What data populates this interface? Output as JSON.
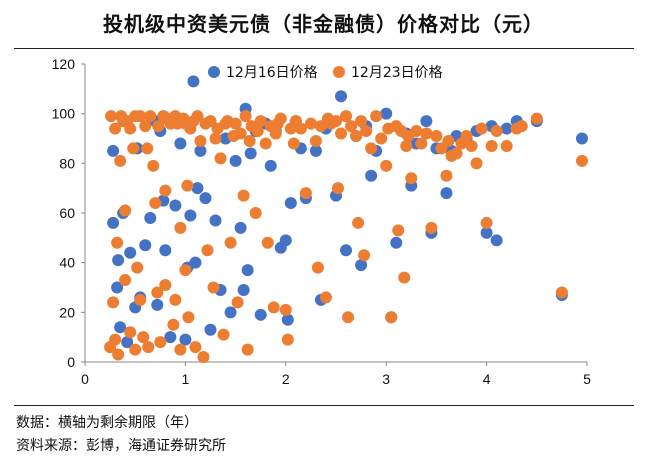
{
  "title": "投机级中资美元债（非金融债）价格对比（元）",
  "notes": {
    "data_note": "数据：横轴为剩余期限（年）",
    "source": "资料来源：彭博，海通证券研究所"
  },
  "colors": {
    "series1": "#4472c4",
    "series2": "#ed7d31",
    "axis": "#888888",
    "text": "#111111"
  },
  "chart_data": {
    "type": "scatter",
    "title": "",
    "xlabel": "",
    "ylabel": "",
    "xlim": [
      0,
      5
    ],
    "ylim": [
      0,
      120
    ],
    "xticks": [
      0,
      1,
      2,
      3,
      4,
      5
    ],
    "yticks": [
      0,
      20,
      40,
      60,
      80,
      100,
      120
    ],
    "grid": false,
    "legend_position": "top-right",
    "series": [
      {
        "name": "12月16日价格",
        "points": [
          [
            0.28,
            85
          ],
          [
            0.28,
            56
          ],
          [
            0.32,
            30
          ],
          [
            0.33,
            41
          ],
          [
            0.35,
            14
          ],
          [
            0.38,
            60
          ],
          [
            0.42,
            8
          ],
          [
            0.45,
            44
          ],
          [
            0.5,
            22
          ],
          [
            0.52,
            86
          ],
          [
            0.55,
            26
          ],
          [
            0.6,
            47
          ],
          [
            0.65,
            58
          ],
          [
            0.7,
            97
          ],
          [
            0.72,
            23
          ],
          [
            0.75,
            93
          ],
          [
            0.78,
            65
          ],
          [
            0.8,
            45
          ],
          [
            0.85,
            10
          ],
          [
            0.9,
            63
          ],
          [
            0.95,
            88
          ],
          [
            1.0,
            9
          ],
          [
            1.02,
            38
          ],
          [
            1.05,
            59
          ],
          [
            1.08,
            113
          ],
          [
            1.1,
            40
          ],
          [
            1.12,
            70
          ],
          [
            1.15,
            85
          ],
          [
            1.2,
            66
          ],
          [
            1.25,
            13
          ],
          [
            1.3,
            57
          ],
          [
            1.35,
            29
          ],
          [
            1.4,
            90
          ],
          [
            1.45,
            20
          ],
          [
            1.5,
            81
          ],
          [
            1.55,
            54
          ],
          [
            1.58,
            29
          ],
          [
            1.6,
            102
          ],
          [
            1.62,
            37
          ],
          [
            1.65,
            84
          ],
          [
            1.7,
            93
          ],
          [
            1.75,
            19
          ],
          [
            1.8,
            96
          ],
          [
            1.85,
            79
          ],
          [
            1.9,
            93
          ],
          [
            1.95,
            46
          ],
          [
            2.0,
            49
          ],
          [
            2.02,
            17
          ],
          [
            2.05,
            64
          ],
          [
            2.1,
            97
          ],
          [
            2.15,
            86
          ],
          [
            2.2,
            66
          ],
          [
            2.3,
            85
          ],
          [
            2.35,
            25
          ],
          [
            2.4,
            94
          ],
          [
            2.5,
            67
          ],
          [
            2.55,
            107
          ],
          [
            2.6,
            45
          ],
          [
            2.7,
            91
          ],
          [
            2.75,
            39
          ],
          [
            2.8,
            95
          ],
          [
            2.85,
            75
          ],
          [
            2.9,
            85
          ],
          [
            3.0,
            100
          ],
          [
            3.05,
            18
          ],
          [
            3.1,
            48
          ],
          [
            3.2,
            92
          ],
          [
            3.25,
            71
          ],
          [
            3.3,
            88
          ],
          [
            3.4,
            97
          ],
          [
            3.45,
            52
          ],
          [
            3.5,
            86
          ],
          [
            3.6,
            68
          ],
          [
            3.65,
            85
          ],
          [
            3.7,
            91
          ],
          [
            3.8,
            90
          ],
          [
            3.9,
            93
          ],
          [
            4.0,
            52
          ],
          [
            4.05,
            95
          ],
          [
            4.1,
            49
          ],
          [
            4.2,
            94
          ],
          [
            4.3,
            97
          ],
          [
            4.5,
            97
          ],
          [
            4.75,
            27
          ],
          [
            4.95,
            90
          ]
        ]
      },
      {
        "name": "12月23日价格",
        "points": [
          [
            0.25,
            6
          ],
          [
            0.26,
            99
          ],
          [
            0.28,
            24
          ],
          [
            0.3,
            9
          ],
          [
            0.3,
            94
          ],
          [
            0.32,
            48
          ],
          [
            0.33,
            3
          ],
          [
            0.35,
            81
          ],
          [
            0.36,
            99
          ],
          [
            0.38,
            97
          ],
          [
            0.4,
            61
          ],
          [
            0.4,
            33
          ],
          [
            0.42,
            97
          ],
          [
            0.45,
            12
          ],
          [
            0.45,
            94
          ],
          [
            0.48,
            86
          ],
          [
            0.5,
            99
          ],
          [
            0.5,
            5
          ],
          [
            0.52,
            38
          ],
          [
            0.55,
            99
          ],
          [
            0.55,
            25
          ],
          [
            0.58,
            10
          ],
          [
            0.6,
            95
          ],
          [
            0.62,
            86
          ],
          [
            0.63,
            6
          ],
          [
            0.65,
            99
          ],
          [
            0.68,
            79
          ],
          [
            0.7,
            64
          ],
          [
            0.72,
            28
          ],
          [
            0.73,
            95
          ],
          [
            0.75,
            8
          ],
          [
            0.78,
            99
          ],
          [
            0.8,
            69
          ],
          [
            0.8,
            31
          ],
          [
            0.82,
            98
          ],
          [
            0.85,
            96
          ],
          [
            0.88,
            15
          ],
          [
            0.9,
            25
          ],
          [
            0.9,
            99
          ],
          [
            0.92,
            96
          ],
          [
            0.95,
            54
          ],
          [
            0.95,
            5
          ],
          [
            0.98,
            98
          ],
          [
            1.0,
            37
          ],
          [
            1.0,
            96
          ],
          [
            1.02,
            71
          ],
          [
            1.03,
            18
          ],
          [
            1.05,
            94
          ],
          [
            1.08,
            97
          ],
          [
            1.1,
            6
          ],
          [
            1.12,
            99
          ],
          [
            1.15,
            89
          ],
          [
            1.18,
            2
          ],
          [
            1.2,
            96
          ],
          [
            1.22,
            45
          ],
          [
            1.25,
            97
          ],
          [
            1.28,
            30
          ],
          [
            1.3,
            90
          ],
          [
            1.32,
            94
          ],
          [
            1.35,
            82
          ],
          [
            1.38,
            11
          ],
          [
            1.4,
            96
          ],
          [
            1.42,
            97
          ],
          [
            1.45,
            48
          ],
          [
            1.48,
            91
          ],
          [
            1.5,
            96
          ],
          [
            1.52,
            24
          ],
          [
            1.55,
            92
          ],
          [
            1.58,
            67
          ],
          [
            1.6,
            99
          ],
          [
            1.62,
            5
          ],
          [
            1.64,
            89
          ],
          [
            1.66,
            95
          ],
          [
            1.7,
            60
          ],
          [
            1.72,
            93
          ],
          [
            1.75,
            97
          ],
          [
            1.8,
            88
          ],
          [
            1.82,
            48
          ],
          [
            1.85,
            95
          ],
          [
            1.88,
            22
          ],
          [
            1.9,
            92
          ],
          [
            1.92,
            96
          ],
          [
            1.95,
            98
          ],
          [
            2.0,
            21
          ],
          [
            2.02,
            9
          ],
          [
            2.05,
            94
          ],
          [
            2.08,
            88
          ],
          [
            2.1,
            97
          ],
          [
            2.15,
            94
          ],
          [
            2.2,
            68
          ],
          [
            2.25,
            96
          ],
          [
            2.3,
            89
          ],
          [
            2.32,
            38
          ],
          [
            2.35,
            95
          ],
          [
            2.4,
            26
          ],
          [
            2.42,
            98
          ],
          [
            2.45,
            96
          ],
          [
            2.5,
            97
          ],
          [
            2.52,
            70
          ],
          [
            2.55,
            92
          ],
          [
            2.6,
            99
          ],
          [
            2.62,
            18
          ],
          [
            2.65,
            95
          ],
          [
            2.7,
            91
          ],
          [
            2.72,
            56
          ],
          [
            2.75,
            97
          ],
          [
            2.78,
            43
          ],
          [
            2.8,
            93
          ],
          [
            2.85,
            86
          ],
          [
            2.9,
            99
          ],
          [
            2.95,
            90
          ],
          [
            3.0,
            79
          ],
          [
            3.02,
            94
          ],
          [
            3.05,
            18
          ],
          [
            3.1,
            95
          ],
          [
            3.12,
            53
          ],
          [
            3.15,
            93
          ],
          [
            3.18,
            34
          ],
          [
            3.2,
            87
          ],
          [
            3.22,
            91
          ],
          [
            3.25,
            74
          ],
          [
            3.3,
            93
          ],
          [
            3.35,
            88
          ],
          [
            3.4,
            92
          ],
          [
            3.45,
            54
          ],
          [
            3.5,
            91
          ],
          [
            3.55,
            86
          ],
          [
            3.6,
            75
          ],
          [
            3.62,
            89
          ],
          [
            3.65,
            83
          ],
          [
            3.7,
            84
          ],
          [
            3.75,
            88
          ],
          [
            3.8,
            91
          ],
          [
            3.85,
            87
          ],
          [
            3.9,
            80
          ],
          [
            3.95,
            94
          ],
          [
            4.0,
            56
          ],
          [
            4.05,
            87
          ],
          [
            4.1,
            93
          ],
          [
            4.2,
            87
          ],
          [
            4.3,
            94
          ],
          [
            4.35,
            95
          ],
          [
            4.5,
            98
          ],
          [
            4.75,
            28
          ],
          [
            4.95,
            81
          ]
        ]
      }
    ]
  }
}
